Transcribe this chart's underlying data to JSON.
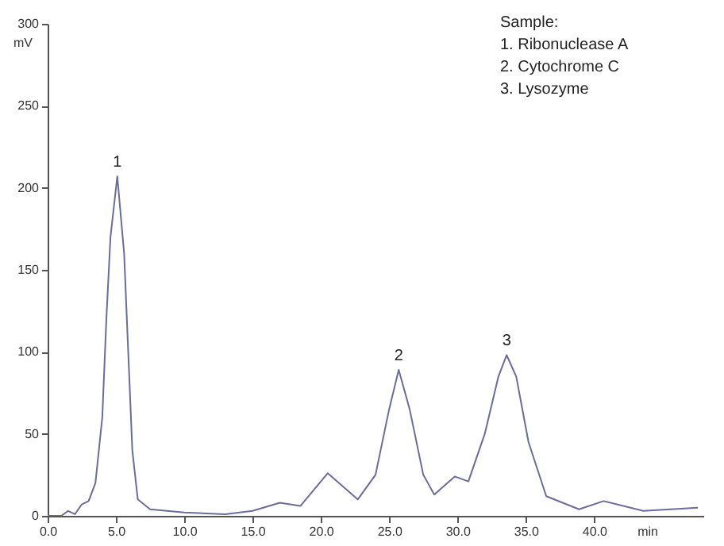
{
  "chart_data": {
    "type": "line",
    "xlabel": "min",
    "ylabel": "mV",
    "x": [
      0,
      1,
      1.5,
      2,
      2.5,
      3,
      3.5,
      4,
      4.3,
      4.6,
      5.1,
      5.6,
      5.9,
      6.2,
      6.6,
      7.5,
      10,
      13,
      15,
      17,
      18.5,
      20.5,
      22.7,
      24,
      25,
      25.7,
      26.5,
      27.5,
      28.3,
      29.8,
      30.8,
      32,
      33,
      33.6,
      34.3,
      35.2,
      36.5,
      38.9,
      40.7,
      43.6,
      47.6
    ],
    "series": [
      {
        "color": "#6b6b9e",
        "values": [
          0,
          0,
          3,
          1,
          7,
          9,
          20,
          60,
          120,
          170,
          207,
          160,
          100,
          40,
          10,
          4,
          2,
          1,
          3,
          8,
          6,
          26,
          10,
          25,
          65,
          89,
          65,
          25,
          13,
          24,
          21,
          50,
          85,
          98,
          85,
          45,
          12,
          4,
          9,
          3,
          5
        ]
      }
    ],
    "xlim": [
      0,
      48
    ],
    "xticks": [
      {
        "value": 0,
        "label": "0.0"
      },
      {
        "value": 5,
        "label": "5.0"
      },
      {
        "value": 10,
        "label": "10.0"
      },
      {
        "value": 15,
        "label": "15.0"
      },
      {
        "value": 20,
        "label": "20.0"
      },
      {
        "value": 25,
        "label": "25.0"
      },
      {
        "value": 30,
        "label": "30.0"
      },
      {
        "value": 35,
        "label": "35.0"
      },
      {
        "value": 40,
        "label": "40.0"
      }
    ],
    "ylim": [
      0,
      300
    ],
    "yticks": [
      0,
      50,
      100,
      150,
      200,
      250,
      300
    ],
    "grid": false,
    "annotations": [
      {
        "text": "1",
        "x": 5.1,
        "y": 207
      },
      {
        "text": "2",
        "x": 25.7,
        "y": 89
      },
      {
        "text": "3",
        "x": 33.6,
        "y": 98
      },
      "Sample:",
      "1. Ribonuclease A",
      "2. Cytochrome C",
      "3. Lysozyme"
    ]
  }
}
